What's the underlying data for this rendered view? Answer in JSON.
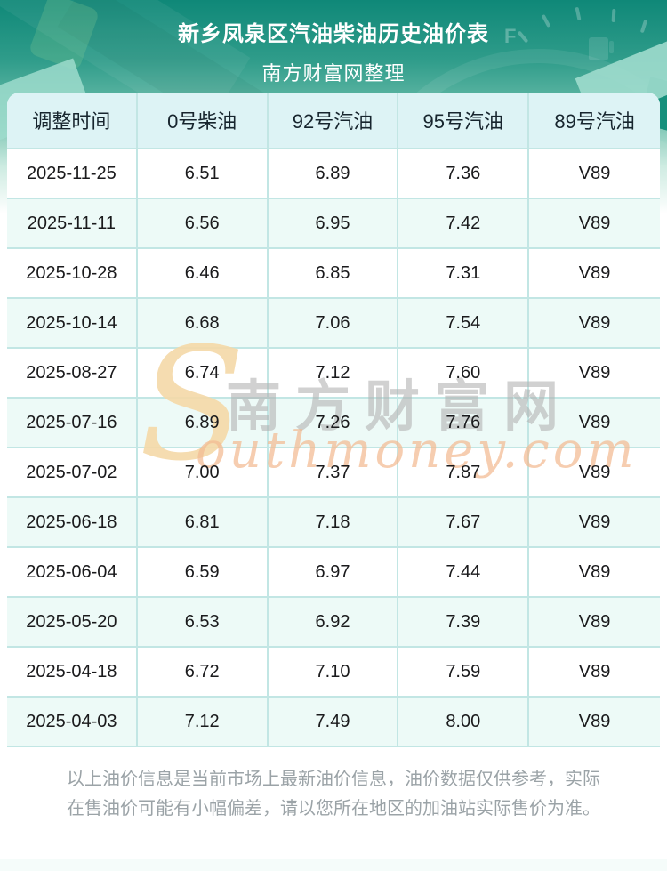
{
  "header": {
    "title": "新乡凤泉区汽油柴油历史油价表",
    "subtitle": "南方财富网整理",
    "gauge_letter": "F"
  },
  "chart_data": {
    "type": "table",
    "title": "新乡凤泉区汽油柴油历史油价表",
    "subtitle": "南方财富网整理",
    "columns": [
      "调整时间",
      "0号柴油",
      "92号汽油",
      "95号汽油",
      "89号汽油"
    ],
    "rows": [
      [
        "2025-11-25",
        "6.51",
        "6.89",
        "7.36",
        "V89"
      ],
      [
        "2025-11-11",
        "6.56",
        "6.95",
        "7.42",
        "V89"
      ],
      [
        "2025-10-28",
        "6.46",
        "6.85",
        "7.31",
        "V89"
      ],
      [
        "2025-10-14",
        "6.68",
        "7.06",
        "7.54",
        "V89"
      ],
      [
        "2025-08-27",
        "6.74",
        "7.12",
        "7.60",
        "V89"
      ],
      [
        "2025-07-16",
        "6.89",
        "7.26",
        "7.76",
        "V89"
      ],
      [
        "2025-07-02",
        "7.00",
        "7.37",
        "7.87",
        "V89"
      ],
      [
        "2025-06-18",
        "6.81",
        "7.18",
        "7.67",
        "V89"
      ],
      [
        "2025-06-04",
        "6.59",
        "6.97",
        "7.44",
        "V89"
      ],
      [
        "2025-05-20",
        "6.53",
        "6.92",
        "7.39",
        "V89"
      ],
      [
        "2025-04-18",
        "6.72",
        "7.10",
        "7.59",
        "V89"
      ],
      [
        "2025-04-03",
        "7.12",
        "7.49",
        "8.00",
        "V89"
      ]
    ],
    "layout": {
      "row_striping": true,
      "header_position": "top"
    }
  },
  "watermark": {
    "s": "S",
    "chinese": "南方财富网",
    "english": "outhmoney.com"
  },
  "footer": {
    "note": "以上油价信息是当前市场上最新油价信息，油价数据仅供参考，实际在售油价可能有小幅偏差，请以您所在地区的加油站实际售价为准。"
  },
  "colors": {
    "hero_top": "#0f8878",
    "hero_mid": "#2f9c8a",
    "hero_low": "#6fbfac",
    "thead_bg": "#ddf3f5",
    "row_alt_bg": "#edfaf7",
    "divider": "#c2e6e4",
    "text_dark": "#1a1a1c",
    "footer_text": "#9ba3a7",
    "wm_gold": "#f5d9a8",
    "wm_gray": "#b3b3b3",
    "wm_peach": "#f3bb92"
  }
}
